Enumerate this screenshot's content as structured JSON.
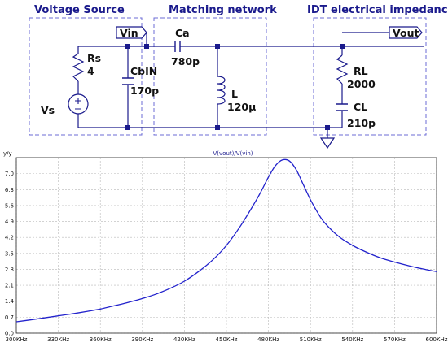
{
  "schematic": {
    "sections": {
      "source": "Voltage Source",
      "matching": "Matching network",
      "idt": "IDT electrical impedance"
    },
    "ports": {
      "vin": "Vin",
      "vout": "Vout"
    },
    "components": {
      "rs_name": "Rs",
      "rs_value": "4",
      "vs_name": "Vs",
      "cbin_name": "CbIN",
      "cbin_value": "170p",
      "ca_name": "Ca",
      "ca_value": "780p",
      "l_name": "L",
      "l_value": "120µ",
      "rl_name": "RL",
      "rl_value": "2000",
      "cl_name": "CL",
      "cl_value": "210p"
    },
    "colors": {
      "wire": "#1a1a8c",
      "box": "#6b6bd6",
      "text": "#111111"
    }
  },
  "plot": {
    "y_unit_label": "y/y",
    "title": "V(vout)/V(vin)",
    "x_ticks": [
      "300KHz",
      "330KHz",
      "360KHz",
      "390KHz",
      "420KHz",
      "450KHz",
      "480KHz",
      "510KHz",
      "540KHz",
      "570KHz",
      "600KHz"
    ],
    "y_ticks": [
      "0.0",
      "0.7",
      "1.4",
      "2.1",
      "2.8",
      "3.5",
      "4.2",
      "4.9",
      "5.6",
      "6.3",
      "7.0"
    ]
  },
  "chart_data": {
    "type": "line",
    "title": "V(vout)/V(vin)",
    "xlabel": "",
    "ylabel": "y/y",
    "xlim": [
      300,
      600
    ],
    "ylim": [
      0,
      7.7
    ],
    "grid": true,
    "series": [
      {
        "color": "#2222cc",
        "x": [
          300,
          310,
          320,
          330,
          340,
          350,
          360,
          370,
          380,
          390,
          400,
          410,
          420,
          430,
          440,
          450,
          460,
          470,
          475,
          480,
          485,
          490,
          495,
          500,
          505,
          510,
          515,
          520,
          530,
          540,
          550,
          560,
          570,
          580,
          590,
          600
        ],
        "y": [
          0.5,
          0.58,
          0.67,
          0.76,
          0.85,
          0.95,
          1.06,
          1.2,
          1.35,
          1.52,
          1.72,
          1.97,
          2.28,
          2.7,
          3.2,
          3.85,
          4.7,
          5.7,
          6.25,
          6.85,
          7.35,
          7.6,
          7.55,
          7.15,
          6.5,
          5.85,
          5.3,
          4.85,
          4.25,
          3.85,
          3.55,
          3.3,
          3.12,
          2.96,
          2.82,
          2.7
        ]
      }
    ]
  }
}
